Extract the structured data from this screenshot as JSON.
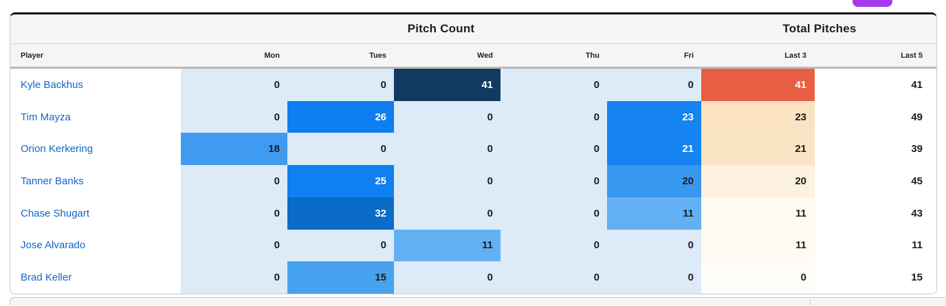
{
  "badge": {
    "name": "purple-pill",
    "color": "#a438ea"
  },
  "palette": {
    "zero_cell": "#ddeaf8",
    "dark_text": "#1d1d1d",
    "white_text": "#ffffff",
    "link_blue": "#1266c8",
    "header_bg": "#f5f5f5",
    "orange_high": "#e85f44"
  },
  "table": {
    "group_headers": {
      "pitch_count": "Pitch Count",
      "total_pitches": "Total Pitches"
    },
    "columns": [
      "Player",
      "Mon",
      "Tues",
      "Wed",
      "Thu",
      "Fri",
      "Last 3",
      "Last 5"
    ],
    "rows": [
      {
        "player": "Kyle Backhus",
        "cells": [
          {
            "v": "0",
            "bg": "#ddeaf8",
            "fg": "#1d1d1d"
          },
          {
            "v": "0",
            "bg": "#ddeaf8",
            "fg": "#1d1d1d"
          },
          {
            "v": "41",
            "bg": "#12395f",
            "fg": "#ffffff"
          },
          {
            "v": "0",
            "bg": "#ddeaf8",
            "fg": "#1d1d1d"
          },
          {
            "v": "0",
            "bg": "#ddeaf8",
            "fg": "#1d1d1d"
          },
          {
            "v": "41",
            "bg": "#e85f44",
            "fg": "#ffffff"
          },
          {
            "v": "41",
            "bg": "#ffffff",
            "fg": "#1d1d1d"
          }
        ]
      },
      {
        "player": "Tim Mayza",
        "cells": [
          {
            "v": "0",
            "bg": "#ddeaf8",
            "fg": "#1d1d1d"
          },
          {
            "v": "26",
            "bg": "#0f7ef0",
            "fg": "#ffffff"
          },
          {
            "v": "0",
            "bg": "#ddeaf8",
            "fg": "#1d1d1d"
          },
          {
            "v": "0",
            "bg": "#ddeaf8",
            "fg": "#1d1d1d"
          },
          {
            "v": "23",
            "bg": "#1583f1",
            "fg": "#ffffff"
          },
          {
            "v": "23",
            "bg": "#fbe3c1",
            "fg": "#1d1d1d"
          },
          {
            "v": "49",
            "bg": "#ffffff",
            "fg": "#1d1d1d"
          }
        ]
      },
      {
        "player": "Orion Kerkering",
        "cells": [
          {
            "v": "18",
            "bg": "#3f9bef",
            "fg": "#1d1d1d"
          },
          {
            "v": "0",
            "bg": "#ddeaf8",
            "fg": "#1d1d1d"
          },
          {
            "v": "0",
            "bg": "#ddeaf8",
            "fg": "#1d1d1d"
          },
          {
            "v": "0",
            "bg": "#ddeaf8",
            "fg": "#1d1d1d"
          },
          {
            "v": "21",
            "bg": "#1583f1",
            "fg": "#ffffff"
          },
          {
            "v": "21",
            "bg": "#fbe4c3",
            "fg": "#1d1d1d"
          },
          {
            "v": "39",
            "bg": "#ffffff",
            "fg": "#1d1d1d"
          }
        ]
      },
      {
        "player": "Tanner Banks",
        "cells": [
          {
            "v": "0",
            "bg": "#ddeaf8",
            "fg": "#1d1d1d"
          },
          {
            "v": "25",
            "bg": "#0f80f0",
            "fg": "#ffffff"
          },
          {
            "v": "0",
            "bg": "#ddeaf8",
            "fg": "#1d1d1d"
          },
          {
            "v": "0",
            "bg": "#ddeaf8",
            "fg": "#1d1d1d"
          },
          {
            "v": "20",
            "bg": "#3897ee",
            "fg": "#1d1d1d"
          },
          {
            "v": "20",
            "bg": "#fdf1e0",
            "fg": "#1d1d1d"
          },
          {
            "v": "45",
            "bg": "#ffffff",
            "fg": "#1d1d1d"
          }
        ]
      },
      {
        "player": "Chase Shugart",
        "cells": [
          {
            "v": "0",
            "bg": "#ddeaf8",
            "fg": "#1d1d1d"
          },
          {
            "v": "32",
            "bg": "#0a6cc8",
            "fg": "#ffffff"
          },
          {
            "v": "0",
            "bg": "#ddeaf8",
            "fg": "#1d1d1d"
          },
          {
            "v": "0",
            "bg": "#ddeaf8",
            "fg": "#1d1d1d"
          },
          {
            "v": "11",
            "bg": "#63b0f3",
            "fg": "#1d1d1d"
          },
          {
            "v": "11",
            "bg": "#fffaf2",
            "fg": "#1d1d1d"
          },
          {
            "v": "43",
            "bg": "#ffffff",
            "fg": "#1d1d1d"
          }
        ]
      },
      {
        "player": "Jose Alvarado",
        "cells": [
          {
            "v": "0",
            "bg": "#ddeaf8",
            "fg": "#1d1d1d"
          },
          {
            "v": "0",
            "bg": "#ddeaf8",
            "fg": "#1d1d1d"
          },
          {
            "v": "11",
            "bg": "#63b0f3",
            "fg": "#1d1d1d"
          },
          {
            "v": "0",
            "bg": "#ddeaf8",
            "fg": "#1d1d1d"
          },
          {
            "v": "0",
            "bg": "#ddeaf8",
            "fg": "#1d1d1d"
          },
          {
            "v": "11",
            "bg": "#fffaf2",
            "fg": "#1d1d1d"
          },
          {
            "v": "11",
            "bg": "#ffffff",
            "fg": "#1d1d1d"
          }
        ]
      },
      {
        "player": "Brad Keller",
        "cells": [
          {
            "v": "0",
            "bg": "#ddeaf8",
            "fg": "#1d1d1d"
          },
          {
            "v": "15",
            "bg": "#47a2f0",
            "fg": "#1d1d1d"
          },
          {
            "v": "0",
            "bg": "#ddeaf8",
            "fg": "#1d1d1d"
          },
          {
            "v": "0",
            "bg": "#ddeaf8",
            "fg": "#1d1d1d"
          },
          {
            "v": "0",
            "bg": "#ddeaf8",
            "fg": "#1d1d1d"
          },
          {
            "v": "0",
            "bg": "#fffdf9",
            "fg": "#1d1d1d"
          },
          {
            "v": "15",
            "bg": "#ffffff",
            "fg": "#1d1d1d"
          }
        ]
      }
    ]
  }
}
